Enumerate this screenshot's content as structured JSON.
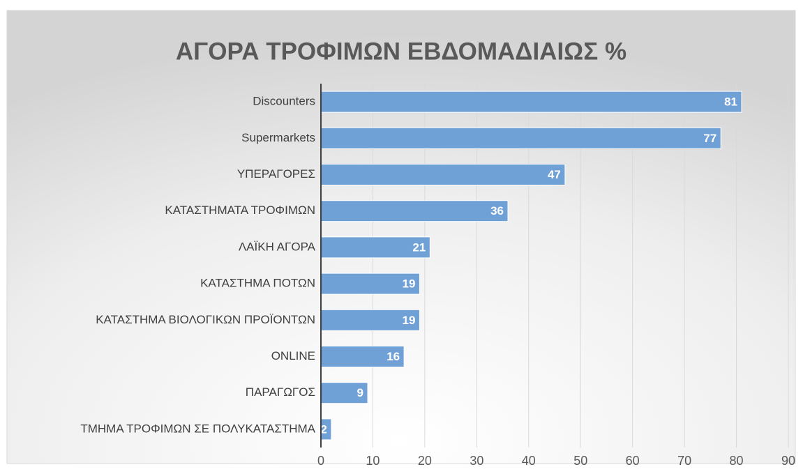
{
  "chart_data": {
    "type": "barh",
    "title": "ΑΓΟΡΑ ΤΡΟΦΙΜΩΝ ΕΒΔΟΜΑΔΙΑΙΩΣ %",
    "categories": [
      "Discounters",
      "Supermarkets",
      "ΥΠΕΡΑΓΟΡΕΣ",
      "ΚΑΤΑΣΤΗΜΑΤΑ ΤΡΟΦΙΜΩΝ",
      "ΛΑΪΚΗ ΑΓΟΡΑ",
      "ΚΑΤΑΣΤΗΜΑ ΠΟΤΩΝ",
      "ΚΑΤΑΣΤΗΜΑ ΒΙΟΛΟΓΙΚΩΝ ΠΡΟΪΟΝΤΩΝ",
      "ONLINE",
      "ΠΑΡΑΓΩΓΟΣ",
      "ΤΜΗΜΑ ΤΡΟΦΙΜΩΝ ΣΕ ΠΟΛΥΚΑΤΑΣΤΗΜΑ"
    ],
    "values": [
      81,
      77,
      47,
      36,
      21,
      19,
      19,
      16,
      9,
      2
    ],
    "color": "#6fa0d6",
    "xlim": [
      0,
      90
    ],
    "xticks": [
      0,
      10,
      20,
      30,
      40,
      50,
      60,
      70,
      80,
      90
    ],
    "grid": true
  }
}
